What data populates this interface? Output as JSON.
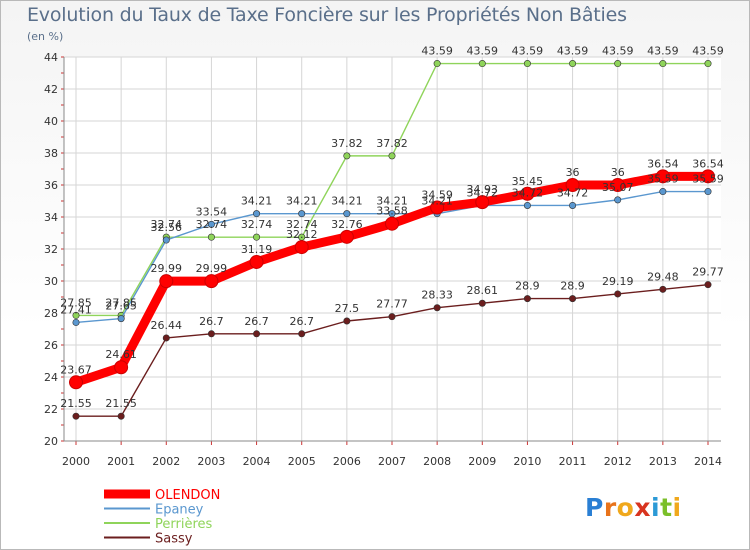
{
  "title": "Evolution du Taux de Taxe Foncière sur les Propriétés Non Bâties",
  "unit": "(en %)",
  "brand": {
    "chars": [
      "P",
      "r",
      "o",
      "x",
      "i",
      "t",
      "i"
    ],
    "colors": [
      "#2a7fd4",
      "#e8731a",
      "#f0a81c",
      "#d8341f",
      "#2c9ad6",
      "#7bbf2a",
      "#f0a81c"
    ]
  },
  "chart_data": {
    "type": "line",
    "x": [
      2000,
      2001,
      2002,
      2003,
      2004,
      2005,
      2006,
      2007,
      2008,
      2009,
      2010,
      2011,
      2012,
      2013,
      2014
    ],
    "ylim": [
      20,
      44
    ],
    "yticks": [
      20,
      22,
      24,
      26,
      28,
      30,
      32,
      34,
      36,
      38,
      40,
      42,
      44
    ],
    "grid": true,
    "legend_position": "bottom-left",
    "series": [
      {
        "name": "OLENDON",
        "color": "#ff0000",
        "values": [
          23.67,
          24.61,
          29.99,
          29.99,
          31.19,
          32.12,
          32.76,
          33.58,
          34.59,
          34.93,
          35.45,
          36,
          36,
          36.54,
          36.54
        ],
        "labels": [
          "23.67",
          "24.61",
          "29.99",
          "29.99",
          "31.19",
          "32.12",
          "32.76",
          "33.58",
          "34.59",
          "34.93",
          "35.45",
          "36",
          "36",
          "36.54",
          "36.54"
        ]
      },
      {
        "name": "Epaney",
        "color": "#5a97cf",
        "values": [
          27.41,
          27.65,
          32.56,
          33.54,
          34.21,
          34.21,
          34.21,
          34.21,
          34.21,
          34.72,
          34.72,
          34.72,
          35.07,
          35.59,
          35.59
        ],
        "labels": [
          "27.41",
          "27.65",
          "32.56",
          "33.54",
          "34.21",
          "34.21",
          "34.21",
          "34.21",
          "34.21",
          "34.72",
          "34.72",
          "34.72",
          "35.07",
          "35.59",
          "35.59"
        ]
      },
      {
        "name": "Perrières",
        "color": "#8fd45a",
        "values": [
          27.85,
          27.85,
          32.74,
          32.74,
          32.74,
          32.74,
          37.82,
          37.82,
          43.59,
          43.59,
          43.59,
          43.59,
          43.59,
          43.59,
          43.59
        ],
        "labels": [
          "27.85",
          "27.85",
          "32.74",
          "32.74",
          "32.74",
          "32.74",
          "37.82",
          "37.82",
          "43.59",
          "43.59",
          "43.59",
          "43.59",
          "43.59",
          "43.59",
          "43.59"
        ]
      },
      {
        "name": "Sassy",
        "color": "#6b1e1e",
        "values": [
          21.55,
          21.55,
          26.44,
          26.7,
          26.7,
          26.7,
          27.5,
          27.77,
          28.33,
          28.61,
          28.9,
          28.9,
          29.19,
          29.48,
          29.77
        ],
        "labels": [
          "21.55",
          "21.55",
          "26.44",
          "26.7",
          "26.7",
          "26.7",
          "27.5",
          "27.77",
          "28.33",
          "28.61",
          "28.9",
          "28.9",
          "29.19",
          "29.48",
          "29.77"
        ]
      }
    ]
  }
}
